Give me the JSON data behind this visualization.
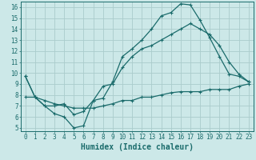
{
  "title": "",
  "xlabel": "Humidex (Indice chaleur)",
  "bg_color": "#cce8e8",
  "grid_color": "#aacccc",
  "line_color": "#1a6b6b",
  "xlim": [
    -0.5,
    23.5
  ],
  "ylim": [
    4.7,
    16.5
  ],
  "xticks": [
    0,
    1,
    2,
    3,
    4,
    5,
    6,
    7,
    8,
    9,
    10,
    11,
    12,
    13,
    14,
    15,
    16,
    17,
    18,
    19,
    20,
    21,
    22,
    23
  ],
  "yticks": [
    5,
    6,
    7,
    8,
    9,
    10,
    11,
    12,
    13,
    14,
    15,
    16
  ],
  "line1_x": [
    0,
    1,
    2,
    3,
    4,
    5,
    6,
    7,
    8,
    9,
    10,
    11,
    12,
    13,
    14,
    15,
    16,
    17,
    18,
    19,
    20,
    21,
    22,
    23
  ],
  "line1_y": [
    9.7,
    7.8,
    7.0,
    6.3,
    6.0,
    5.0,
    5.2,
    7.5,
    7.7,
    9.2,
    11.5,
    12.2,
    13.0,
    14.0,
    15.2,
    15.5,
    16.3,
    16.2,
    14.8,
    13.2,
    11.5,
    9.9,
    9.7,
    9.2
  ],
  "line2_x": [
    0,
    1,
    2,
    3,
    4,
    5,
    6,
    7,
    8,
    9,
    10,
    11,
    12,
    13,
    14,
    15,
    16,
    17,
    18,
    19,
    20,
    21,
    22,
    23
  ],
  "line2_y": [
    9.7,
    7.8,
    7.0,
    7.0,
    7.2,
    6.2,
    6.5,
    7.5,
    8.8,
    9.0,
    10.5,
    11.5,
    12.2,
    12.5,
    13.0,
    13.5,
    14.0,
    14.5,
    14.0,
    13.5,
    12.5,
    11.0,
    9.9,
    9.2
  ],
  "line3_x": [
    0,
    1,
    2,
    3,
    4,
    5,
    6,
    7,
    8,
    9,
    10,
    11,
    12,
    13,
    14,
    15,
    16,
    17,
    18,
    19,
    20,
    21,
    22,
    23
  ],
  "line3_y": [
    7.8,
    7.8,
    7.5,
    7.2,
    7.0,
    6.8,
    6.8,
    6.8,
    7.0,
    7.2,
    7.5,
    7.5,
    7.8,
    7.8,
    8.0,
    8.2,
    8.3,
    8.3,
    8.3,
    8.5,
    8.5,
    8.5,
    8.8,
    9.0
  ],
  "tick_fontsize": 5.5,
  "xlabel_fontsize": 7
}
